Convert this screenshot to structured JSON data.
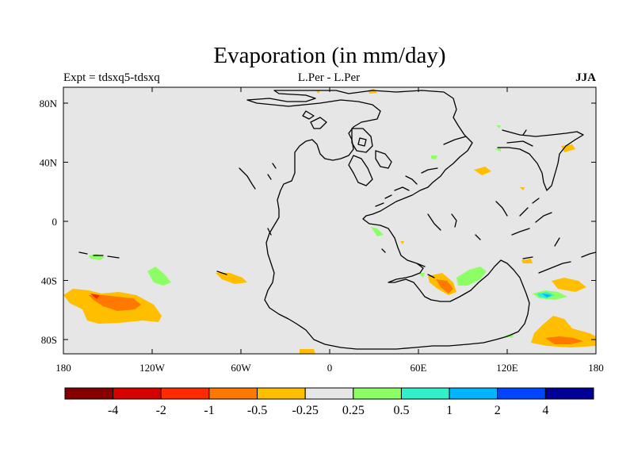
{
  "title": "Evaporation (in mm/day)",
  "left_label": "Expt = tdsxq5-tdsxq",
  "center_label": "L.Per - L.Per",
  "right_label": "JJA",
  "x_ticks": [
    "180",
    "120W",
    "60W",
    "0",
    "60E",
    "120E",
    "180"
  ],
  "y_ticks": [
    "80N",
    "40N",
    "0",
    "40S",
    "80S"
  ],
  "colorbar": {
    "colors": [
      "#870000",
      "#d60000",
      "#ff2a00",
      "#ff7800",
      "#ffbe00",
      "#e6e6e6",
      "#8cff64",
      "#32f0c8",
      "#00b4ff",
      "#0046ff",
      "#000096"
    ],
    "labels": [
      "-4",
      "-2",
      "-1",
      "-0.5",
      "-0.25",
      "0.25",
      "0.5",
      "1",
      "2",
      "4"
    ]
  },
  "colors": {
    "background": "#e6e6e6",
    "coastline": "#000000"
  }
}
